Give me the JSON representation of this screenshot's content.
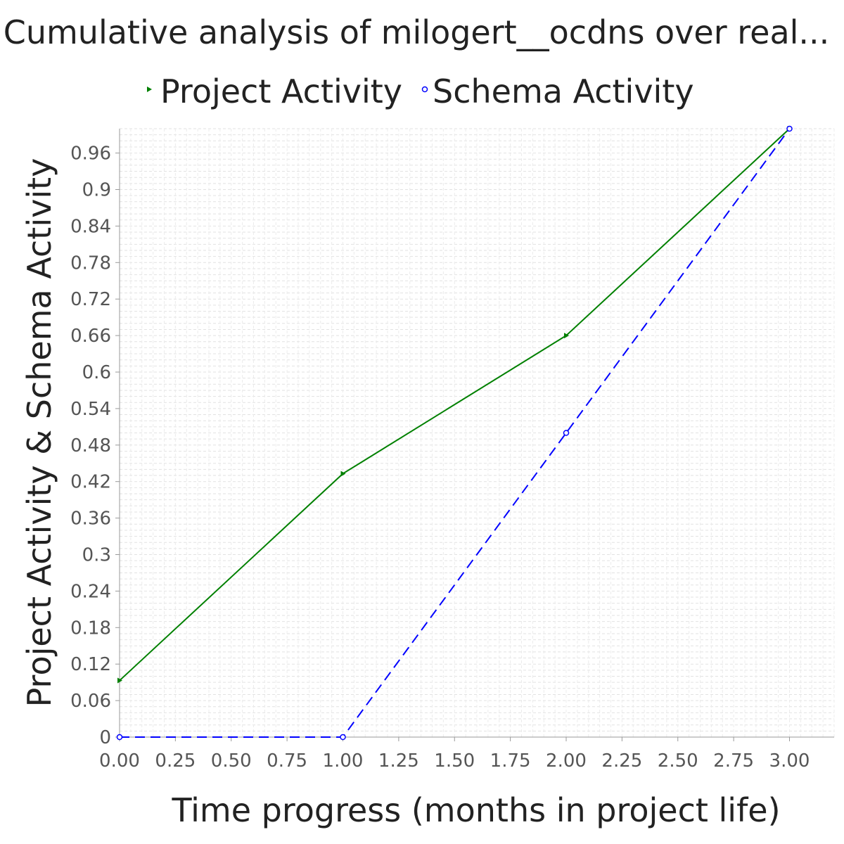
{
  "title": "Cumulative analysis of milogert__ocdns over real...",
  "chart_data": {
    "type": "line",
    "title": "Cumulative analysis of milogert__ocdns over real...",
    "xlabel": "Time progress (months in project life)",
    "ylabel": "Project Activity & Schema Activity",
    "xlim": [
      0,
      3.2
    ],
    "ylim": [
      0,
      1.0
    ],
    "x_ticks": [
      "0.00",
      "0.25",
      "0.50",
      "0.75",
      "1.00",
      "1.25",
      "1.50",
      "1.75",
      "2.00",
      "2.25",
      "2.50",
      "2.75",
      "3.00"
    ],
    "y_ticks": [
      "0",
      "0.06",
      "0.12",
      "0.18",
      "0.24",
      "0.3",
      "0.36",
      "0.42",
      "0.48",
      "0.54",
      "0.6",
      "0.66",
      "0.72",
      "0.78",
      "0.84",
      "0.9",
      "0.96"
    ],
    "grid": true,
    "legend_position": "top",
    "series": [
      {
        "name": "Project Activity",
        "color": "#008000",
        "line_style": "solid",
        "marker": "triangle-right",
        "x": [
          0,
          1,
          2,
          3
        ],
        "y": [
          0.093,
          0.433,
          0.66,
          1.0
        ]
      },
      {
        "name": "Schema Activity",
        "color": "#0000ff",
        "line_style": "dashed",
        "marker": "circle",
        "x": [
          0,
          1,
          2,
          3
        ],
        "y": [
          0.0,
          0.0,
          0.5,
          1.0
        ]
      }
    ]
  }
}
